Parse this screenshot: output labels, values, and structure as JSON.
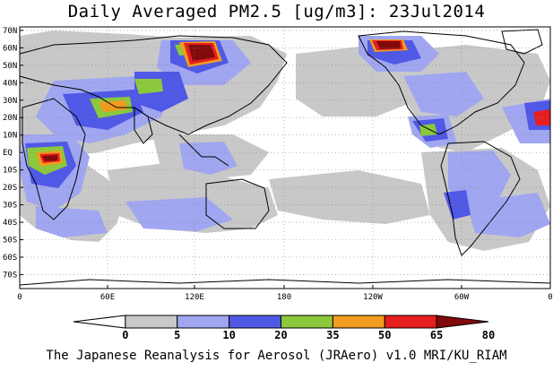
{
  "title": "Daily Averaged PM2.5 [ug/m3]: 23Jul2014",
  "footer": "The Japanese Reanalysis for Aerosol (JRAero) v1.0 MRI/KU_RIAM",
  "map": {
    "lat_labels": [
      "70N",
      "60N",
      "50N",
      "40N",
      "30N",
      "20N",
      "10N",
      "EQ",
      "10S",
      "20S",
      "30S",
      "40S",
      "50S",
      "60S",
      "70S"
    ],
    "lon_labels": [
      "0",
      "60E",
      "120E",
      "180",
      "120W",
      "60W",
      "0"
    ],
    "ocean_color": "#ffffff",
    "land_outline_color": "#000000"
  },
  "colorbar": {
    "ticks": [
      "0",
      "5",
      "10",
      "20",
      "35",
      "50",
      "65",
      "80"
    ],
    "colors": [
      "#ffffff",
      "#c8c8c8",
      "#a0a6f0",
      "#5058e6",
      "#8cc83c",
      "#f09c1e",
      "#e61e1e",
      "#820a0a"
    ]
  },
  "bands": {
    "gray": "#c8c8c8",
    "light_blue": "#a0a6f0",
    "blue": "#5058e6",
    "green": "#8cc83c",
    "orange": "#f09c1e",
    "red": "#e61e1e",
    "darkred": "#820a0a"
  }
}
